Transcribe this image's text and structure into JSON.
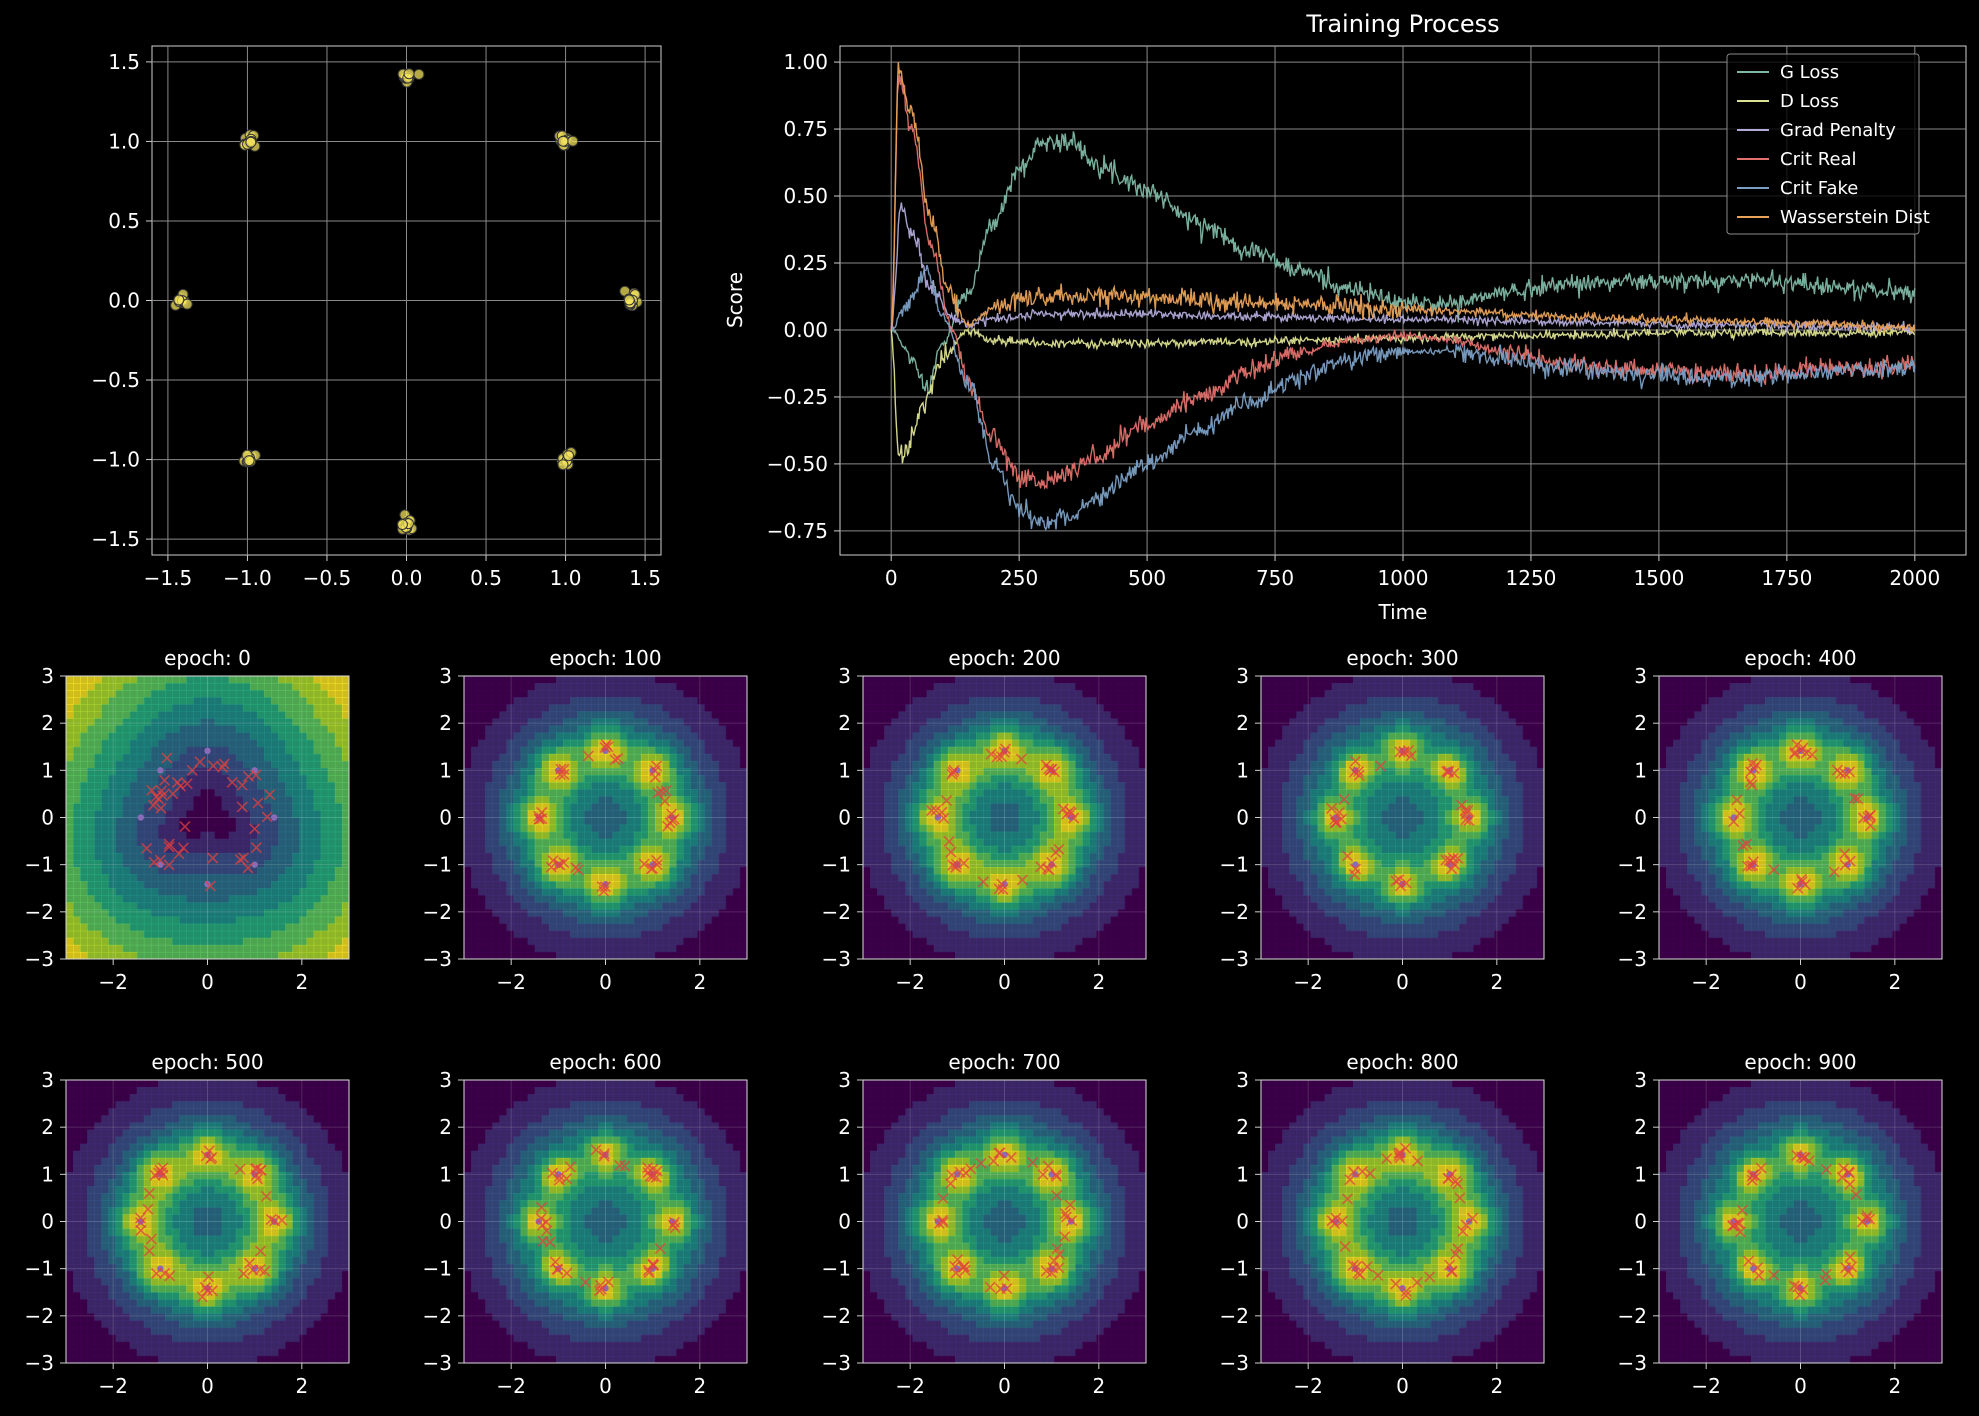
{
  "chart_data": [
    {
      "type": "scatter",
      "xlim": [
        -1.6,
        1.6
      ],
      "ylim": [
        -1.6,
        1.6
      ],
      "x_ticks": [
        -1.5,
        -1.0,
        -0.5,
        0.0,
        0.5,
        1.0,
        1.5
      ],
      "y_ticks": [
        -1.5,
        -1.0,
        -0.5,
        0.0,
        0.5,
        1.0,
        1.5
      ],
      "grid": true,
      "point_color": "#f2e15c",
      "clusters": [
        {
          "x": 0.0,
          "y": 1.414
        },
        {
          "x": 1.0,
          "y": 1.0
        },
        {
          "x": 1.414,
          "y": 0.0
        },
        {
          "x": 1.0,
          "y": -1.0
        },
        {
          "x": 0.0,
          "y": -1.414
        },
        {
          "x": -1.0,
          "y": -1.0
        },
        {
          "x": -1.414,
          "y": 0.0
        },
        {
          "x": -1.0,
          "y": 1.0
        }
      ]
    },
    {
      "type": "line",
      "title": "Training Process",
      "xlabel": "Time",
      "ylabel": "Score",
      "xlim": [
        -100,
        2100
      ],
      "ylim": [
        -0.84,
        1.06
      ],
      "x_ticks": [
        0,
        250,
        500,
        750,
        1000,
        1250,
        1500,
        1750,
        2000
      ],
      "y_ticks": [
        -0.75,
        -0.5,
        -0.25,
        0.0,
        0.25,
        0.5,
        0.75,
        1.0
      ],
      "grid": true,
      "legend_position": "top-right",
      "series": [
        {
          "name": "G Loss",
          "color": "#7fb7a4",
          "points": [
            [
              0,
              0
            ],
            [
              40,
              -0.1
            ],
            [
              70,
              -0.22
            ],
            [
              100,
              -0.05
            ],
            [
              150,
              0.15
            ],
            [
              200,
              0.4
            ],
            [
              250,
              0.6
            ],
            [
              300,
              0.71
            ],
            [
              350,
              0.7
            ],
            [
              400,
              0.63
            ],
            [
              450,
              0.57
            ],
            [
              500,
              0.52
            ],
            [
              600,
              0.4
            ],
            [
              700,
              0.3
            ],
            [
              800,
              0.22
            ],
            [
              900,
              0.15
            ],
            [
              1000,
              0.1
            ],
            [
              1100,
              0.1
            ],
            [
              1200,
              0.14
            ],
            [
              1300,
              0.17
            ],
            [
              1400,
              0.18
            ],
            [
              1500,
              0.18
            ],
            [
              1600,
              0.18
            ],
            [
              1700,
              0.19
            ],
            [
              1800,
              0.17
            ],
            [
              1900,
              0.15
            ],
            [
              2000,
              0.14
            ]
          ]
        },
        {
          "name": "D Loss",
          "color": "#dce091",
          "points": [
            [
              0,
              0
            ],
            [
              15,
              -0.47
            ],
            [
              30,
              -0.45
            ],
            [
              60,
              -0.3
            ],
            [
              100,
              -0.1
            ],
            [
              150,
              0.0
            ],
            [
              200,
              -0.04
            ],
            [
              300,
              -0.05
            ],
            [
              500,
              -0.05
            ],
            [
              800,
              -0.04
            ],
            [
              1000,
              -0.03
            ],
            [
              1300,
              -0.02
            ],
            [
              1600,
              -0.01
            ],
            [
              2000,
              -0.01
            ]
          ]
        },
        {
          "name": "Grad Penalty",
          "color": "#b1a9d8",
          "points": [
            [
              0,
              0
            ],
            [
              20,
              0.47
            ],
            [
              40,
              0.35
            ],
            [
              80,
              0.15
            ],
            [
              120,
              0.05
            ],
            [
              150,
              0.02
            ],
            [
              200,
              0.04
            ],
            [
              300,
              0.06
            ],
            [
              500,
              0.06
            ],
            [
              700,
              0.05
            ],
            [
              1000,
              0.04
            ],
            [
              1300,
              0.03
            ],
            [
              1600,
              0.02
            ],
            [
              2000,
              0.01
            ]
          ]
        },
        {
          "name": "Crit Real",
          "color": "#e0716b",
          "points": [
            [
              0,
              0
            ],
            [
              15,
              0.95
            ],
            [
              40,
              0.75
            ],
            [
              80,
              0.3
            ],
            [
              120,
              0.0
            ],
            [
              150,
              -0.2
            ],
            [
              200,
              -0.4
            ],
            [
              250,
              -0.55
            ],
            [
              300,
              -0.57
            ],
            [
              350,
              -0.53
            ],
            [
              400,
              -0.47
            ],
            [
              500,
              -0.35
            ],
            [
              600,
              -0.25
            ],
            [
              700,
              -0.15
            ],
            [
              800,
              -0.08
            ],
            [
              900,
              -0.04
            ],
            [
              1000,
              -0.02
            ],
            [
              1100,
              -0.04
            ],
            [
              1200,
              -0.08
            ],
            [
              1300,
              -0.12
            ],
            [
              1400,
              -0.14
            ],
            [
              1500,
              -0.15
            ],
            [
              1600,
              -0.16
            ],
            [
              1700,
              -0.17
            ],
            [
              1800,
              -0.15
            ],
            [
              1900,
              -0.14
            ],
            [
              2000,
              -0.13
            ]
          ]
        },
        {
          "name": "Crit Fake",
          "color": "#7b9fc4",
          "points": [
            [
              0,
              0
            ],
            [
              30,
              0.1
            ],
            [
              70,
              0.22
            ],
            [
              100,
              0.05
            ],
            [
              150,
              -0.2
            ],
            [
              200,
              -0.5
            ],
            [
              250,
              -0.67
            ],
            [
              300,
              -0.72
            ],
            [
              350,
              -0.7
            ],
            [
              400,
              -0.63
            ],
            [
              500,
              -0.5
            ],
            [
              600,
              -0.38
            ],
            [
              700,
              -0.27
            ],
            [
              800,
              -0.17
            ],
            [
              900,
              -0.11
            ],
            [
              1000,
              -0.08
            ],
            [
              1100,
              -0.08
            ],
            [
              1200,
              -0.11
            ],
            [
              1300,
              -0.14
            ],
            [
              1400,
              -0.16
            ],
            [
              1500,
              -0.17
            ],
            [
              1600,
              -0.18
            ],
            [
              1700,
              -0.18
            ],
            [
              1800,
              -0.16
            ],
            [
              1900,
              -0.15
            ],
            [
              2000,
              -0.14
            ]
          ]
        },
        {
          "name": "Wasserstein Dist",
          "color": "#e8a25a",
          "points": [
            [
              0,
              0
            ],
            [
              15,
              0.97
            ],
            [
              40,
              0.8
            ],
            [
              80,
              0.4
            ],
            [
              110,
              0.15
            ],
            [
              150,
              0.02
            ],
            [
              200,
              0.08
            ],
            [
              250,
              0.11
            ],
            [
              300,
              0.12
            ],
            [
              400,
              0.13
            ],
            [
              500,
              0.12
            ],
            [
              700,
              0.1
            ],
            [
              900,
              0.09
            ],
            [
              1100,
              0.07
            ],
            [
              1300,
              0.05
            ],
            [
              1500,
              0.04
            ],
            [
              1700,
              0.03
            ],
            [
              2000,
              0.01
            ]
          ]
        }
      ]
    },
    {
      "type": "heatmap",
      "panels": [
        {
          "title": "epoch: 0"
        },
        {
          "title": "epoch: 100"
        },
        {
          "title": "epoch: 200"
        },
        {
          "title": "epoch: 300"
        },
        {
          "title": "epoch: 400"
        },
        {
          "title": "epoch: 500"
        },
        {
          "title": "epoch: 600"
        },
        {
          "title": "epoch: 700"
        },
        {
          "title": "epoch: 800"
        },
        {
          "title": "epoch: 900"
        }
      ],
      "xlim": [
        -3,
        3
      ],
      "ylim": [
        -3,
        3
      ],
      "x_ticks": [
        -2,
        0,
        2
      ],
      "y_ticks": [
        -3,
        -2,
        -1,
        0,
        1,
        2,
        3
      ],
      "colormap": "viridis",
      "real_marker_color": "#8a6bb8",
      "fake_marker_color": "#e0413f",
      "real_points": [
        {
          "x": 0.0,
          "y": 1.414
        },
        {
          "x": 1.0,
          "y": 1.0
        },
        {
          "x": 1.414,
          "y": 0.0
        },
        {
          "x": 1.0,
          "y": -1.0
        },
        {
          "x": 0.0,
          "y": -1.414
        },
        {
          "x": -1.0,
          "y": -1.0
        },
        {
          "x": -1.414,
          "y": 0.0
        },
        {
          "x": -1.0,
          "y": 1.0
        }
      ]
    }
  ]
}
